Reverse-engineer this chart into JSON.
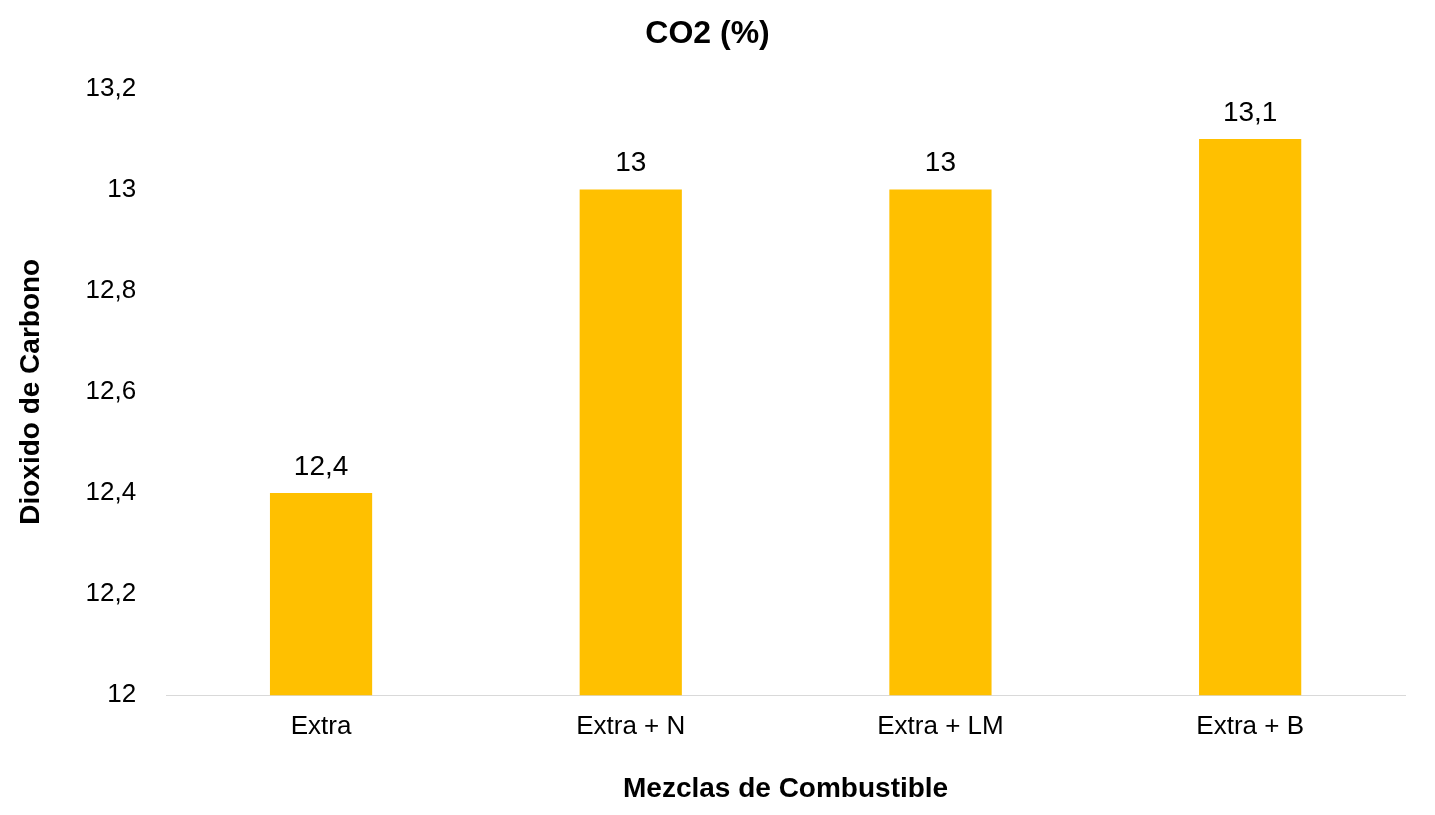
{
  "chart_data": {
    "type": "bar",
    "title": "CO2 (%)",
    "xlabel": "Mezclas de Combustible",
    "ylabel": "Dioxido de Carbono",
    "categories": [
      "Extra",
      "Extra + N",
      "Extra + LM",
      "Extra + B"
    ],
    "values": [
      12.4,
      13,
      13,
      13.1
    ],
    "color": "#ffc000",
    "value_labels": [
      "12,4",
      "13",
      "13",
      "13,1"
    ],
    "ylim": [
      12,
      13.2
    ],
    "yticks": [
      12,
      {
        "value": 12.2,
        "label": "12,2"
      },
      {
        "value": 12.4,
        "label": "12,4"
      },
      {
        "value": 12.6,
        "label": "12,6"
      },
      {
        "value": 12.8,
        "label": "12,8"
      },
      13,
      {
        "value": 13.2,
        "label": "13,2"
      }
    ],
    "grid": false,
    "legend": false
  }
}
